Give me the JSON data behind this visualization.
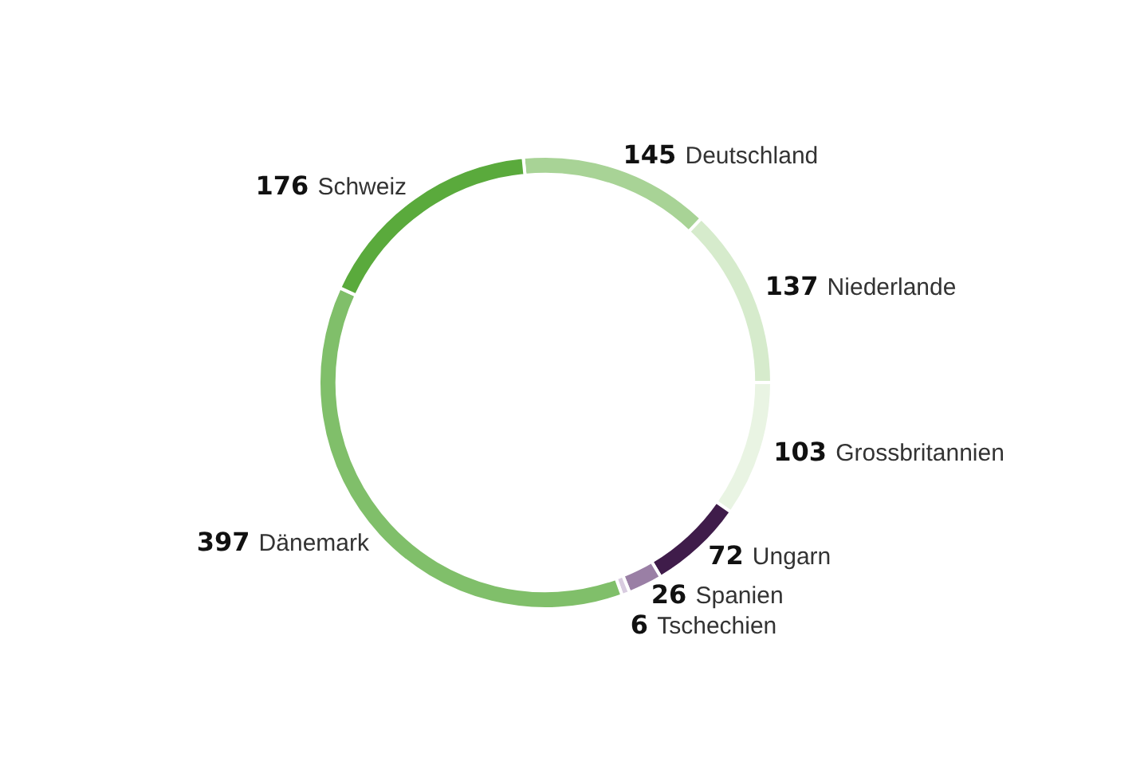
{
  "chart_data": {
    "type": "donut",
    "categories": [
      "Deutschland",
      "Niederlande",
      "Grossbritannien",
      "Ungarn",
      "Spanien",
      "Tschechien",
      "Dänemark",
      "Schweiz"
    ],
    "values": [
      145,
      137,
      103,
      72,
      26,
      6,
      397,
      176
    ],
    "colors": [
      "#a8d396",
      "#d6ebcc",
      "#e9f4e3",
      "#3f1c4a",
      "#9a7fa5",
      "#d9cce0",
      "#80bf6a",
      "#5aaa3c"
    ],
    "data_labels": true,
    "legend": false
  }
}
